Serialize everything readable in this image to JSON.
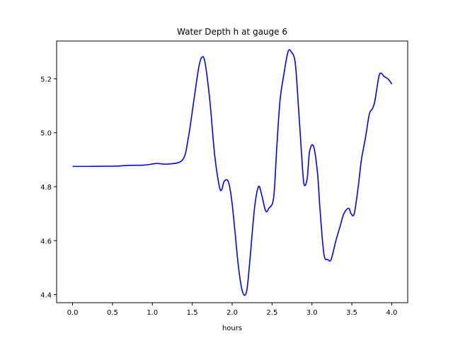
{
  "chart_data": {
    "type": "line",
    "title": "Water Depth h at gauge 6",
    "xlabel": "hours",
    "ylabel": "",
    "xlim": [
      -0.2,
      4.2
    ],
    "ylim": [
      4.37,
      5.34
    ],
    "xticks": [
      0.0,
      0.5,
      1.0,
      1.5,
      2.0,
      2.5,
      3.0,
      3.5,
      4.0
    ],
    "xtick_labels": [
      "0.0",
      "0.5",
      "1.0",
      "1.5",
      "2.0",
      "2.5",
      "3.0",
      "3.5",
      "4.0"
    ],
    "yticks": [
      4.4,
      4.6,
      4.8,
      5.0,
      5.2
    ],
    "ytick_labels": [
      "4.4",
      "4.6",
      "4.8",
      "5.0",
      "5.2"
    ],
    "grid": false,
    "legend": "none",
    "series": [
      {
        "name": "",
        "color": "#0000ff",
        "x": [
          0.0,
          0.5,
          0.7,
          0.9,
          1.05,
          1.2,
          1.38,
          1.45,
          1.52,
          1.58,
          1.62,
          1.66,
          1.72,
          1.78,
          1.84,
          1.87,
          1.9,
          1.95,
          1.99,
          2.03,
          2.08,
          2.13,
          2.18,
          2.22,
          2.28,
          2.33,
          2.37,
          2.42,
          2.46,
          2.52,
          2.56,
          2.6,
          2.65,
          2.7,
          2.74,
          2.79,
          2.83,
          2.87,
          2.9,
          2.94,
          2.97,
          3.02,
          3.07,
          3.1,
          3.15,
          3.2,
          3.24,
          3.3,
          3.35,
          3.4,
          3.46,
          3.49,
          3.53,
          3.58,
          3.62,
          3.67,
          3.72,
          3.76,
          3.79,
          3.84,
          3.87,
          3.9,
          3.95,
          3.98,
          4.0
        ],
        "y": [
          4.875,
          4.876,
          4.879,
          4.88,
          4.886,
          4.884,
          4.9,
          4.98,
          5.12,
          5.24,
          5.28,
          5.26,
          5.12,
          4.92,
          4.8,
          4.79,
          4.82,
          4.82,
          4.76,
          4.65,
          4.5,
          4.41,
          4.41,
          4.52,
          4.72,
          4.8,
          4.77,
          4.71,
          4.72,
          4.76,
          4.95,
          5.12,
          5.22,
          5.3,
          5.3,
          5.26,
          5.1,
          4.92,
          4.81,
          4.83,
          4.93,
          4.95,
          4.85,
          4.72,
          4.55,
          4.53,
          4.53,
          4.6,
          4.65,
          4.7,
          4.72,
          4.7,
          4.7,
          4.8,
          4.9,
          4.98,
          5.07,
          5.09,
          5.12,
          5.21,
          5.22,
          5.21,
          5.2,
          5.19,
          5.18
        ]
      }
    ]
  }
}
